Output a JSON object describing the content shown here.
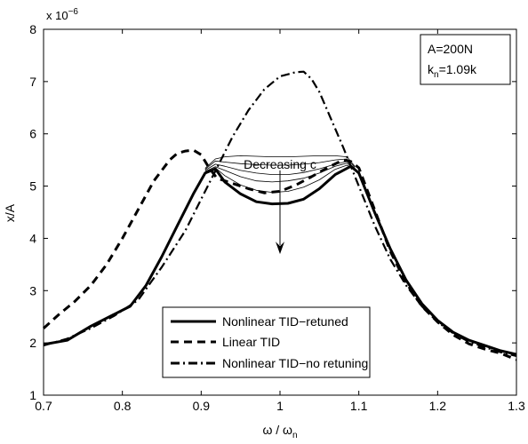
{
  "chart_data": {
    "type": "line",
    "xlabel": "ω / ω",
    "xlabel_sub": "n",
    "ylabel": "x/A",
    "y_multiplier": "x 10",
    "y_multiplier_exp": "−6",
    "xlim": [
      0.7,
      1.3
    ],
    "ylim": [
      1,
      8
    ],
    "x_ticks": [
      "0.7",
      "0.8",
      "0.9",
      "1",
      "1.1",
      "1.2",
      "1.3"
    ],
    "y_ticks": [
      "1",
      "2",
      "3",
      "4",
      "5",
      "6",
      "7",
      "8"
    ],
    "grid": false,
    "info_box": {
      "line1": "A=200N",
      "line2_main": "k",
      "line2_sub": "n",
      "line2_rest": "=1.09k"
    },
    "annotation": {
      "text": "Decreasing c",
      "arrow_from": [
        1.0,
        5.3
      ],
      "arrow_to": [
        1.0,
        3.7
      ]
    },
    "legend": {
      "placement": "bottom-center",
      "entries": [
        {
          "label": "Nonlinear TID−retuned",
          "style": "solid-thick"
        },
        {
          "label": "Linear TID",
          "style": "dashed"
        },
        {
          "label": "Nonlinear TID−no retuning",
          "style": "dashdot"
        }
      ]
    },
    "series": [
      {
        "name": "Nonlinear TID−retuned",
        "style": "solid-thick",
        "x": [
          0.7,
          0.73,
          0.76,
          0.79,
          0.81,
          0.83,
          0.85,
          0.87,
          0.89,
          0.905,
          0.918,
          0.93,
          0.95,
          0.97,
          0.99,
          1.01,
          1.03,
          1.05,
          1.07,
          1.09,
          1.1,
          1.12,
          1.14,
          1.16,
          1.18,
          1.2,
          1.22,
          1.24,
          1.26,
          1.28,
          1.3
        ],
        "y": [
          1.97,
          2.05,
          2.32,
          2.55,
          2.7,
          3.1,
          3.65,
          4.25,
          4.85,
          5.25,
          5.33,
          5.08,
          4.85,
          4.7,
          4.66,
          4.67,
          4.75,
          4.95,
          5.22,
          5.38,
          5.25,
          4.5,
          3.8,
          3.2,
          2.75,
          2.43,
          2.2,
          2.05,
          1.95,
          1.85,
          1.78
        ]
      },
      {
        "name": "Linear TID",
        "style": "dashed",
        "x": [
          0.7,
          0.72,
          0.74,
          0.76,
          0.78,
          0.8,
          0.82,
          0.84,
          0.86,
          0.87,
          0.88,
          0.89,
          0.9,
          0.91,
          0.92,
          0.94,
          0.96,
          0.98,
          1.0,
          1.02,
          1.04,
          1.06,
          1.08,
          1.09,
          1.1,
          1.12,
          1.14,
          1.16,
          1.18,
          1.2,
          1.22,
          1.24,
          1.26,
          1.28,
          1.3
        ],
        "y": [
          2.28,
          2.55,
          2.8,
          3.1,
          3.5,
          4.0,
          4.55,
          5.1,
          5.5,
          5.63,
          5.67,
          5.69,
          5.6,
          5.35,
          5.15,
          5.05,
          4.95,
          4.87,
          4.9,
          5.02,
          5.18,
          5.35,
          5.5,
          5.47,
          5.35,
          4.55,
          3.75,
          3.15,
          2.7,
          2.4,
          2.15,
          1.98,
          1.88,
          1.8,
          1.68
        ]
      },
      {
        "name": "Nonlinear TID−no retuning",
        "style": "dashdot",
        "x": [
          0.7,
          0.73,
          0.76,
          0.79,
          0.82,
          0.85,
          0.88,
          0.9,
          0.92,
          0.94,
          0.96,
          0.98,
          1.0,
          1.02,
          1.03,
          1.04,
          1.05,
          1.06,
          1.08,
          1.1,
          1.12,
          1.14,
          1.16,
          1.18,
          1.2,
          1.22,
          1.24,
          1.26,
          1.28,
          1.3
        ],
        "y": [
          1.95,
          2.08,
          2.28,
          2.52,
          2.82,
          3.45,
          4.15,
          4.75,
          5.35,
          5.95,
          6.45,
          6.85,
          7.1,
          7.18,
          7.19,
          7.05,
          6.8,
          6.45,
          5.75,
          5.0,
          4.25,
          3.6,
          3.1,
          2.7,
          2.4,
          2.18,
          2.02,
          1.92,
          1.82,
          1.75
        ]
      },
      {
        "name": "",
        "style": "thin",
        "x": [
          0.905,
          0.918,
          0.93,
          0.95,
          0.97,
          0.99,
          1.01,
          1.03,
          1.05,
          1.07,
          1.085,
          1.095
        ],
        "y": [
          5.25,
          5.35,
          5.2,
          5.02,
          4.92,
          4.88,
          4.9,
          4.98,
          5.12,
          5.32,
          5.4,
          5.3
        ]
      },
      {
        "name": "",
        "style": "thin",
        "x": [
          0.905,
          0.918,
          0.93,
          0.95,
          0.97,
          0.99,
          1.01,
          1.03,
          1.05,
          1.07,
          1.085,
          1.095
        ],
        "y": [
          5.28,
          5.37,
          5.3,
          5.18,
          5.1,
          5.08,
          5.1,
          5.15,
          5.25,
          5.38,
          5.44,
          5.32
        ]
      },
      {
        "name": "",
        "style": "thin",
        "x": [
          0.905,
          0.918,
          0.93,
          0.95,
          0.97,
          0.99,
          1.01,
          1.03,
          1.05,
          1.07,
          1.085,
          1.095
        ],
        "y": [
          5.3,
          5.42,
          5.38,
          5.3,
          5.25,
          5.22,
          5.22,
          5.26,
          5.33,
          5.42,
          5.47,
          5.34
        ]
      },
      {
        "name": "",
        "style": "thin",
        "x": [
          0.905,
          0.918,
          0.93,
          0.95,
          0.97,
          0.99,
          1.01,
          1.03,
          1.05,
          1.07,
          1.085,
          1.095
        ],
        "y": [
          5.32,
          5.48,
          5.46,
          5.43,
          5.41,
          5.4,
          5.4,
          5.42,
          5.45,
          5.5,
          5.52,
          5.36
        ]
      },
      {
        "name": "",
        "style": "thin",
        "x": [
          0.905,
          0.918,
          0.93,
          0.95,
          0.97,
          0.99,
          1.01,
          1.03,
          1.05,
          1.07,
          1.085,
          1.095
        ],
        "y": [
          5.34,
          5.52,
          5.56,
          5.58,
          5.57,
          5.56,
          5.56,
          5.57,
          5.58,
          5.58,
          5.56,
          5.38
        ]
      }
    ]
  }
}
